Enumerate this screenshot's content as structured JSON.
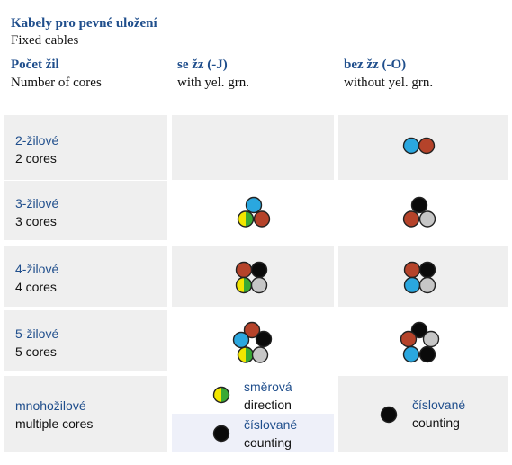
{
  "title": {
    "cz": "Kabely pro pevné uložení",
    "en": "Fixed cables"
  },
  "headers": {
    "cores": {
      "cz": "Počet žil",
      "en": "Number of cores"
    },
    "with": {
      "cz": "se žz (-J)",
      "en": "with yel. grn."
    },
    "without": {
      "cz": "bez žz (-O)",
      "en": "without yel. grn."
    }
  },
  "rows": [
    {
      "cz": "2-žilové",
      "en": "2 cores"
    },
    {
      "cz": "3-žilové",
      "en": "3 cores"
    },
    {
      "cz": "4-žilové",
      "en": "4 cores"
    },
    {
      "cz": "5-žilové",
      "en": "5 cores"
    },
    {
      "cz": "mnohožilové",
      "en": "multiple cores"
    }
  ],
  "legend": {
    "direction": {
      "cz": "směrová",
      "en": "direction"
    },
    "counting": {
      "cz": "číslované",
      "en": "counting"
    }
  },
  "colors": {
    "blue": "#2aa7df",
    "brown": "#b5432a",
    "black": "#0a0a0a",
    "grey": "#c6c6c6",
    "green": "#39a935",
    "yellow": "#f2e600",
    "accent": "#1f4e8c",
    "cell_bg": "#efefef"
  }
}
